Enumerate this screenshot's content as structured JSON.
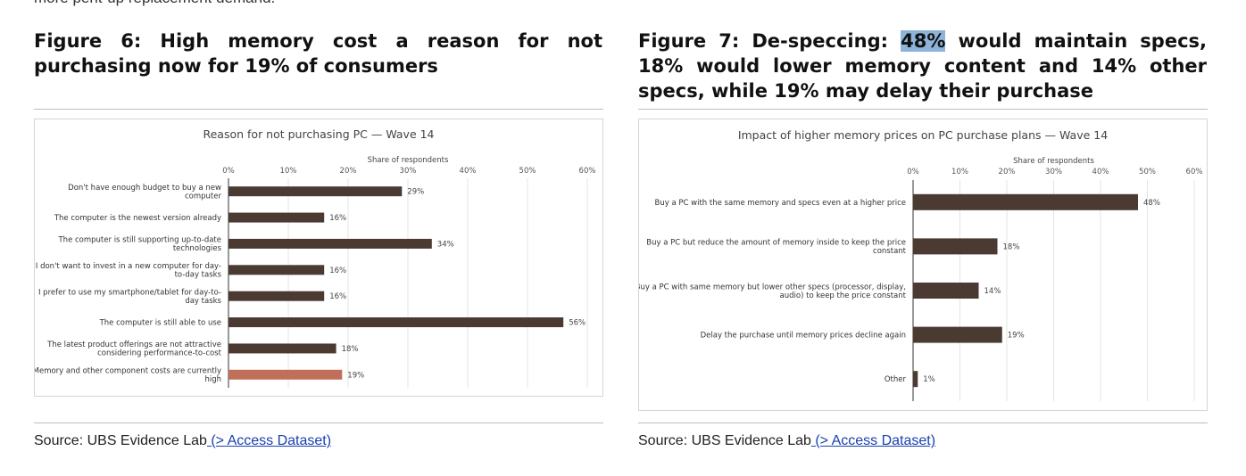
{
  "page": {
    "top_text": "more pent-up replacement demand."
  },
  "figure6": {
    "title": "Figure 6: High memory cost a reason for not purchasing now for 19% of consumers",
    "source_text": "Source: UBS Evidence Lab",
    "source_link": " (> Access Dataset)"
  },
  "figure7": {
    "title_parts": {
      "before": "Figure 7: De-speccing: ",
      "highlight": "48%",
      "after": " would maintain specs, 18% would lower memory content and 14% other specs, while 19% may delay their purchase"
    },
    "source_text": "Source: UBS Evidence Lab",
    "source_link": " (> Access Dataset)"
  },
  "chart_data": [
    {
      "type": "bar",
      "orientation": "horizontal",
      "title": "Reason for not purchasing PC — Wave 14",
      "xlabel": "Share of respondents",
      "ticks": [
        "0%",
        "10%",
        "20%",
        "30%",
        "40%",
        "50%",
        "60%"
      ],
      "xlim": [
        0,
        60
      ],
      "grid": true,
      "categories": [
        [
          "Don't have enough budget to buy a new",
          "computer"
        ],
        [
          "The computer is the newest version already"
        ],
        [
          "The computer is still supporting up-to-date",
          "technologies"
        ],
        [
          "I don't want to invest in a new computer for day-",
          "to-day tasks"
        ],
        [
          "I prefer to use my smartphone/tablet for day-to-",
          "day tasks"
        ],
        [
          "The computer is still able to use"
        ],
        [
          "The latest product offerings are not attractive",
          "considering performance-to-cost"
        ],
        [
          "Memory and other component costs are currently",
          "high"
        ]
      ],
      "values": [
        29,
        16,
        34,
        16,
        16,
        56,
        18,
        19
      ],
      "labels": [
        "29%",
        "16%",
        "34%",
        "16%",
        "16%",
        "56%",
        "18%",
        "19%"
      ],
      "colors": [
        "#4a3a32",
        "#4a3a32",
        "#4a3a32",
        "#4a3a32",
        "#4a3a32",
        "#4a3a32",
        "#4a3a32",
        "#c0705a"
      ]
    },
    {
      "type": "bar",
      "orientation": "horizontal",
      "title": "Impact of higher memory prices on PC purchase plans — Wave 14",
      "xlabel": "Share of respondents",
      "ticks": [
        "0%",
        "10%",
        "20%",
        "30%",
        "40%",
        "50%",
        "60%"
      ],
      "xlim": [
        0,
        60
      ],
      "grid": true,
      "categories": [
        [
          "Buy a PC with the same memory and specs even at a higher price"
        ],
        [
          "Buy a PC but reduce the amount of memory inside to keep the price",
          "constant"
        ],
        [
          "Buy a PC with same memory but lower other specs (processor, display,",
          "audio) to keep the price constant"
        ],
        [
          "Delay the purchase until memory prices decline again"
        ],
        [
          "Other"
        ]
      ],
      "values": [
        48,
        18,
        14,
        19,
        1
      ],
      "labels": [
        "48%",
        "18%",
        "14%",
        "19%",
        "1%"
      ],
      "colors": [
        "#4a3a32",
        "#4a3a32",
        "#4a3a32",
        "#4a3a32",
        "#4a3a32"
      ]
    }
  ]
}
